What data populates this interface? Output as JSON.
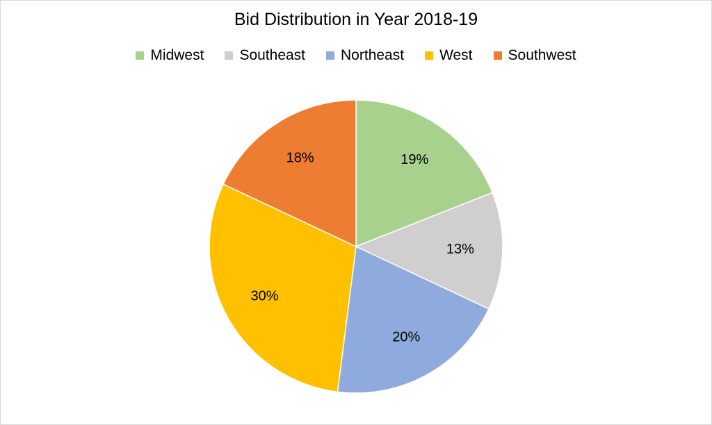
{
  "chart_data": {
    "type": "pie",
    "title": "Bid Distribution in Year 2018-19",
    "legend_position": "top",
    "categories": [
      "Midwest",
      "Southeast",
      "Northeast",
      "West",
      "Southwest"
    ],
    "values": [
      19,
      13,
      20,
      30,
      18
    ],
    "data_labels": [
      "19%",
      "13%",
      "20%",
      "30%",
      "18%"
    ],
    "colors": [
      "#a9d18e",
      "#d0cece",
      "#8faadc",
      "#ffc000",
      "#ed7d31"
    ]
  }
}
